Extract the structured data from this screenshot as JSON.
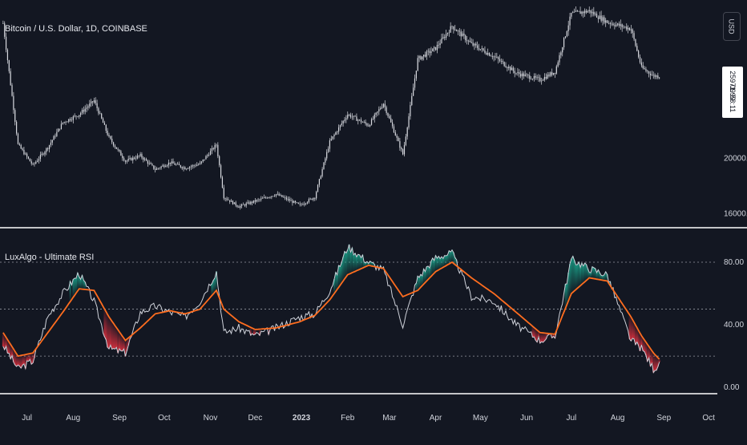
{
  "header": {
    "main_title": "Bitcoin / U.S. Dollar, 1D, COINBASE",
    "indicator_title": "LuxAlgo - Ultimate RSI",
    "currency_button": "USD",
    "last_price": "25971.99",
    "countdown": "09:58:11"
  },
  "colors": {
    "background": "#131722",
    "candle": "#d8dae0",
    "rsi_line": "#cfd2da",
    "signal_line": "#ff6d1f",
    "overbought_fill": "#1aa58c",
    "oversold_fill": "#e0313f",
    "separator": "#ffffff"
  },
  "chart_data": [
    {
      "type": "candlestick",
      "title": "Bitcoin / U.S. Dollar, 1D, COINBASE",
      "y_axis_ticks": [
        "20000.00",
        "16000.00"
      ],
      "ylim": [
        15200,
        31500
      ],
      "x": [
        "2022-06-15",
        "2022-06-25",
        "2022-07-05",
        "2022-07-15",
        "2022-07-25",
        "2022-08-05",
        "2022-08-15",
        "2022-08-25",
        "2022-09-05",
        "2022-09-15",
        "2022-09-25",
        "2022-10-05",
        "2022-10-15",
        "2022-10-25",
        "2022-11-05",
        "2022-11-10",
        "2022-11-20",
        "2022-12-01",
        "2022-12-15",
        "2022-12-31",
        "2023-01-10",
        "2023-01-20",
        "2023-02-01",
        "2023-02-15",
        "2023-02-25",
        "2023-03-10",
        "2023-03-20",
        "2023-04-01",
        "2023-04-12",
        "2023-04-25",
        "2023-05-10",
        "2023-05-25",
        "2023-06-10",
        "2023-06-20",
        "2023-07-01",
        "2023-07-13",
        "2023-07-25",
        "2023-08-10",
        "2023-08-17",
        "2023-08-25",
        "2023-08-29"
      ],
      "close": [
        29800,
        21000,
        19500,
        20800,
        22600,
        23200,
        24200,
        21500,
        19800,
        20200,
        19200,
        19700,
        19300,
        19600,
        21000,
        17200,
        16500,
        16900,
        17400,
        16600,
        17200,
        21200,
        23200,
        22400,
        24000,
        20300,
        27200,
        28000,
        29600,
        28300,
        27400,
        26200,
        25700,
        26300,
        30500,
        30700,
        29900,
        29400,
        26600,
        26000,
        25972
      ],
      "x_axis_labels": [
        "Jul",
        "Aug",
        "Sep",
        "Oct",
        "Nov",
        "Dec",
        "2023",
        "Feb",
        "Mar",
        "Apr",
        "May",
        "Jun",
        "Jul",
        "Aug",
        "Sep",
        "Oct"
      ]
    },
    {
      "type": "line",
      "title": "LuxAlgo - Ultimate RSI",
      "y_axis_ticks": [
        "80.00",
        "40.00",
        "0.00"
      ],
      "levels": [
        80,
        50,
        20
      ],
      "ylim": [
        -3,
        100
      ],
      "x": [
        "2022-06-15",
        "2022-06-25",
        "2022-07-05",
        "2022-07-15",
        "2022-07-25",
        "2022-08-05",
        "2022-08-15",
        "2022-08-25",
        "2022-09-05",
        "2022-09-15",
        "2022-09-25",
        "2022-10-05",
        "2022-10-15",
        "2022-10-25",
        "2022-11-05",
        "2022-11-10",
        "2022-11-20",
        "2022-12-01",
        "2022-12-15",
        "2022-12-31",
        "2023-01-10",
        "2023-01-20",
        "2023-02-01",
        "2023-02-15",
        "2023-02-25",
        "2023-03-10",
        "2023-03-20",
        "2023-04-01",
        "2023-04-12",
        "2023-04-25",
        "2023-05-10",
        "2023-05-25",
        "2023-06-10",
        "2023-06-20",
        "2023-07-01",
        "2023-07-13",
        "2023-07-25",
        "2023-08-10",
        "2023-08-17",
        "2023-08-25",
        "2023-08-29"
      ],
      "series": [
        {
          "values": [
            27,
            12,
            17,
            45,
            60,
            73,
            55,
            25,
            22,
            48,
            52,
            48,
            45,
            55,
            74,
            35,
            38,
            33,
            38,
            45,
            47,
            62,
            90,
            80,
            75,
            40,
            70,
            83,
            86,
            58,
            55,
            40,
            30,
            33,
            82,
            76,
            72,
            30,
            25,
            12,
            14
          ]
        },
        {
          "values": [
            35,
            20,
            22,
            35,
            48,
            63,
            62,
            45,
            30,
            38,
            47,
            49,
            47,
            50,
            62,
            50,
            42,
            37,
            38,
            42,
            46,
            56,
            72,
            78,
            76,
            58,
            62,
            74,
            80,
            70,
            60,
            48,
            35,
            34,
            60,
            70,
            68,
            45,
            33,
            22,
            18
          ]
        }
      ]
    }
  ]
}
